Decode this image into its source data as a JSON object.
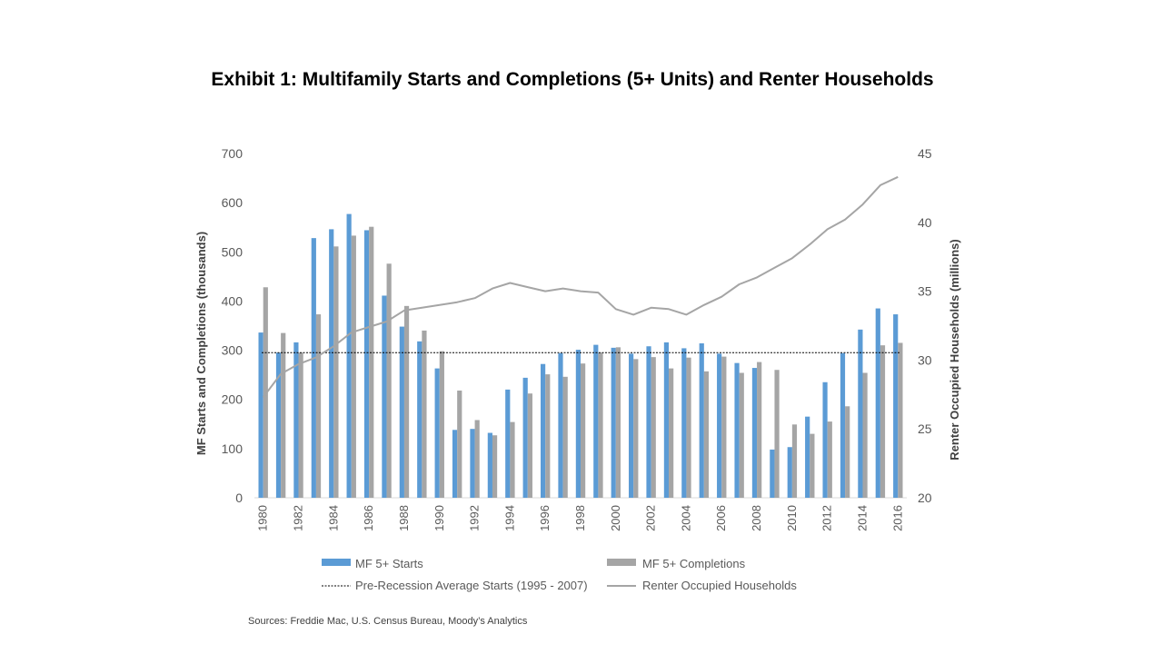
{
  "chart_data": {
    "type": "bar",
    "title": "Exhibit 1: Multifamily Starts and Completions (5+ Units) and Renter Households",
    "ylabel": "MF Starts and Completions (thousands)",
    "y2label": "Renter Occupied Households (millions)",
    "ylim": [
      0,
      700
    ],
    "y2lim": [
      20,
      45
    ],
    "yticks": [
      0,
      100,
      200,
      300,
      400,
      500,
      600,
      700
    ],
    "y2ticks": [
      20,
      25,
      30,
      35,
      40,
      45
    ],
    "x": [
      1980,
      1981,
      1982,
      1983,
      1984,
      1985,
      1986,
      1987,
      1988,
      1989,
      1990,
      1991,
      1992,
      1993,
      1994,
      1995,
      1996,
      1997,
      1998,
      1999,
      2000,
      2001,
      2002,
      2003,
      2004,
      2005,
      2006,
      2007,
      2008,
      2009,
      2010,
      2011,
      2012,
      2013,
      2014,
      2015,
      2016
    ],
    "xtick_labels": [
      "1980",
      "",
      "1982",
      "",
      "1984",
      "",
      "1986",
      "",
      "1988",
      "",
      "1990",
      "",
      "1992",
      "",
      "1994",
      "",
      "1996",
      "",
      "1998",
      "",
      "2000",
      "",
      "2002",
      "",
      "2004",
      "",
      "2006",
      "",
      "2008",
      "",
      "2010",
      "",
      "2012",
      "",
      "2014",
      "",
      "2016"
    ],
    "series": [
      {
        "name": "MF 5+ Starts",
        "kind": "bar",
        "axis": "left",
        "color": "#5B9BD5",
        "values": [
          336,
          295,
          316,
          528,
          546,
          577,
          544,
          411,
          348,
          318,
          263,
          138,
          140,
          132,
          220,
          244,
          272,
          294,
          301,
          311,
          305,
          293,
          308,
          316,
          304,
          314,
          293,
          274,
          264,
          98,
          103,
          165,
          235,
          294,
          342,
          385,
          373
        ]
      },
      {
        "name": "MF 5+ Completions",
        "kind": "bar",
        "axis": "left",
        "color": "#A5A5A5",
        "values": [
          428,
          335,
          295,
          373,
          511,
          533,
          551,
          476,
          390,
          340,
          298,
          218,
          158,
          127,
          154,
          212,
          251,
          246,
          273,
          295,
          306,
          282,
          286,
          263,
          285,
          257,
          287,
          254,
          276,
          260,
          149,
          130,
          155,
          186,
          254,
          310,
          315
        ]
      },
      {
        "name": "Pre-Recession Average Starts (1995 - 2007)",
        "kind": "hline",
        "axis": "left",
        "color": "#000000",
        "value": 295
      },
      {
        "name": "Renter Occupied Households",
        "kind": "line",
        "axis": "right",
        "color": "#A5A5A5",
        "values": [
          27.3,
          29.0,
          29.7,
          30.2,
          31.0,
          32.0,
          32.4,
          32.8,
          33.6,
          33.8,
          34.0,
          34.2,
          34.5,
          35.2,
          35.6,
          35.3,
          35.0,
          35.2,
          35.0,
          34.9,
          33.7,
          33.3,
          33.8,
          33.7,
          33.3,
          34.0,
          34.6,
          35.5,
          36.0,
          36.7,
          37.4,
          38.4,
          39.5,
          40.2,
          41.3,
          42.7,
          43.3
        ]
      }
    ],
    "legend_position": "bottom"
  },
  "source_note": "Sources: Freddie Mac, U.S. Census Bureau, Moody’s Analytics"
}
